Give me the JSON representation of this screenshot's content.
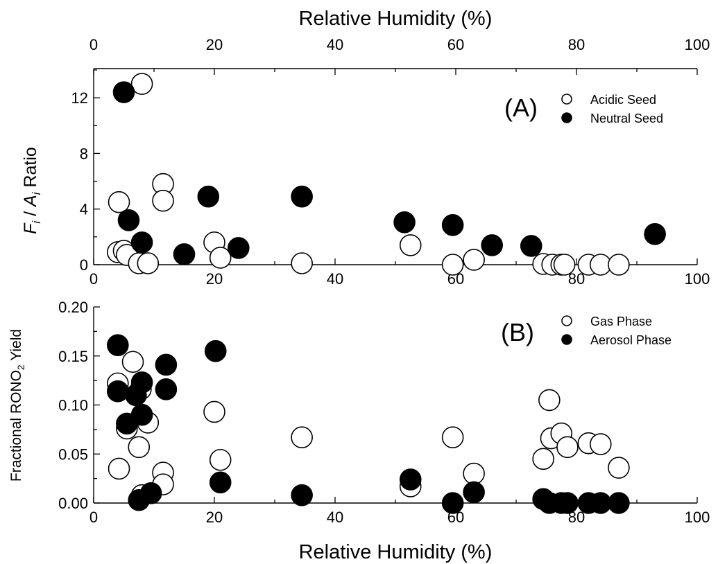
{
  "chart_data": [
    {
      "type": "scatter",
      "panel": "(A)",
      "title": "",
      "top_xlabel": "Relative Humidity (%)",
      "xlabel": "",
      "ylabel_parts": [
        "F",
        "i",
        " / ",
        "A",
        "i",
        " Ratio"
      ],
      "xlim": [
        0,
        100
      ],
      "ylim": [
        0,
        14
      ],
      "xticks": [
        0,
        20,
        40,
        60,
        80,
        100
      ],
      "yticks": [
        0,
        4,
        8,
        12
      ],
      "grid": false,
      "legend_position": "top-right",
      "series": [
        {
          "name": "Acidic Seed",
          "marker": "open",
          "points": [
            [
              4,
              0.9
            ],
            [
              4.2,
              4.5
            ],
            [
              5,
              1.0
            ],
            [
              5.5,
              0.7
            ],
            [
              7.5,
              0.1
            ],
            [
              8,
              13.0
            ],
            [
              9,
              0.1
            ],
            [
              11.5,
              5.8
            ],
            [
              11.5,
              4.6
            ],
            [
              20,
              1.6
            ],
            [
              21,
              0.5
            ],
            [
              34.5,
              0.1
            ],
            [
              52.5,
              1.4
            ],
            [
              59.5,
              0.0
            ],
            [
              63,
              0.35
            ],
            [
              74.5,
              0.05
            ],
            [
              76,
              0.0
            ],
            [
              77.5,
              0.0
            ],
            [
              78,
              0.0
            ],
            [
              82,
              0.0
            ],
            [
              84,
              0.0
            ],
            [
              87,
              0.0
            ]
          ]
        },
        {
          "name": "Neutral Seed",
          "marker": "filled",
          "points": [
            [
              5,
              12.4
            ],
            [
              5.8,
              3.2
            ],
            [
              8,
              1.6
            ],
            [
              15,
              0.75
            ],
            [
              19,
              4.9
            ],
            [
              24,
              1.2
            ],
            [
              34.5,
              4.9
            ],
            [
              51.5,
              3.05
            ],
            [
              59.5,
              2.85
            ],
            [
              66,
              1.4
            ],
            [
              72.5,
              1.35
            ],
            [
              93,
              2.2
            ]
          ]
        }
      ]
    },
    {
      "type": "scatter",
      "panel": "(B)",
      "title": "",
      "xlabel": "Relative Humidity (%)",
      "ylabel_parts": [
        "Fractional RONO",
        "2",
        " Yield"
      ],
      "xlim": [
        0,
        100
      ],
      "ylim": [
        0,
        0.2
      ],
      "xticks": [
        0,
        20,
        40,
        60,
        80,
        100
      ],
      "yticks": [
        "0.00",
        "0.05",
        "0.10",
        "0.15",
        "0.20"
      ],
      "grid": false,
      "legend_position": "top-right",
      "series": [
        {
          "name": "Gas Phase",
          "marker": "open",
          "points": [
            [
              4,
              0.122
            ],
            [
              4.2,
              0.035
            ],
            [
              5.5,
              0.076
            ],
            [
              6.5,
              0.144
            ],
            [
              7.5,
              0.057
            ],
            [
              7.8,
              0.116
            ],
            [
              8,
              0.008
            ],
            [
              9,
              0.082
            ],
            [
              11.5,
              0.031
            ],
            [
              11.5,
              0.019
            ],
            [
              20,
              0.093
            ],
            [
              21,
              0.044
            ],
            [
              34.5,
              0.067
            ],
            [
              52.5,
              0.017
            ],
            [
              59.5,
              0.067
            ],
            [
              63,
              0.03
            ],
            [
              74.5,
              0.045
            ],
            [
              75.5,
              0.105
            ],
            [
              75.8,
              0.066
            ],
            [
              77.5,
              0.071
            ],
            [
              78.5,
              0.057
            ],
            [
              82,
              0.061
            ],
            [
              84,
              0.06
            ],
            [
              87,
              0.036
            ]
          ]
        },
        {
          "name": "Aerosol Phase",
          "marker": "filled",
          "points": [
            [
              4,
              0.161
            ],
            [
              4,
              0.114
            ],
            [
              5.5,
              0.081
            ],
            [
              7,
              0.11
            ],
            [
              7.5,
              0.003
            ],
            [
              8,
              0.123
            ],
            [
              8,
              0.09
            ],
            [
              9.5,
              0.01
            ],
            [
              12,
              0.141
            ],
            [
              12,
              0.116
            ],
            [
              20.2,
              0.155
            ],
            [
              21,
              0.021
            ],
            [
              34.5,
              0.008
            ],
            [
              52.5,
              0.024
            ],
            [
              59.5,
              0.0
            ],
            [
              63,
              0.011
            ],
            [
              74.5,
              0.004
            ],
            [
              75.5,
              0.0
            ],
            [
              77.5,
              0.0
            ],
            [
              78.5,
              0.0
            ],
            [
              82,
              0.0
            ],
            [
              84,
              0.0
            ],
            [
              87,
              0.0
            ]
          ]
        }
      ]
    }
  ]
}
